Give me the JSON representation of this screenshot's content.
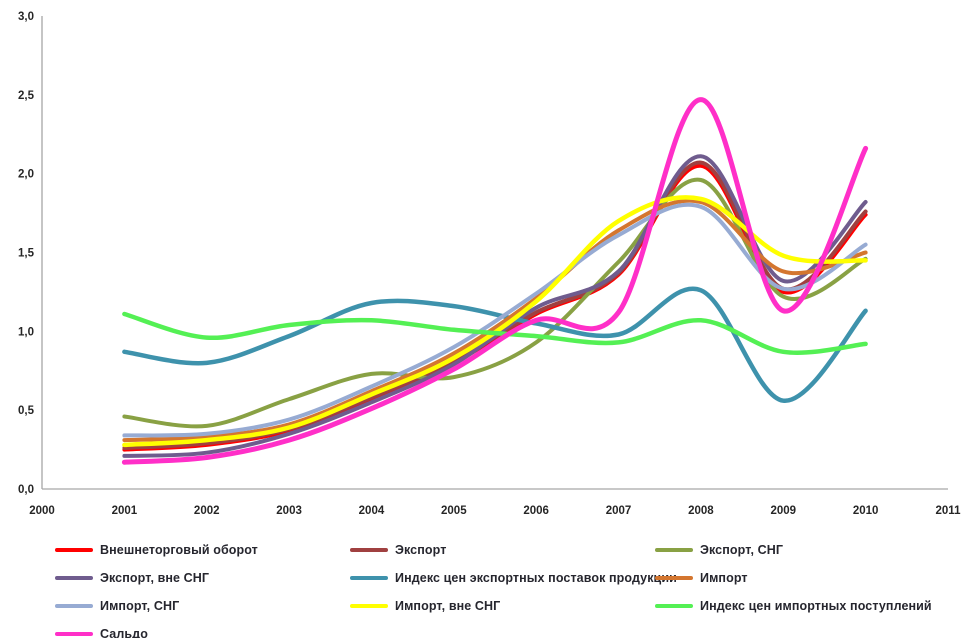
{
  "chart_data": {
    "type": "line",
    "title": "",
    "xlabel": "",
    "ylabel": "",
    "xlim": [
      2000,
      2011
    ],
    "ylim": [
      0.0,
      3.0
    ],
    "grid": false,
    "smooth": true,
    "legend_position": "bottom",
    "axis_color": "#A6A6A6",
    "tick_text_color": "#262626",
    "x_axis_ticks": [
      "2000",
      "2001",
      "2002",
      "2003",
      "2004",
      "2005",
      "2006",
      "2007",
      "2008",
      "2009",
      "2010",
      "2011"
    ],
    "y_axis_ticks": [
      "0,0",
      "0,5",
      "1,0",
      "1,5",
      "2,0",
      "2,5",
      "3,0"
    ],
    "y_tick_step": 0.5,
    "x": [
      2001,
      2002,
      2003,
      2004,
      2005,
      2006,
      2007,
      2008,
      2009,
      2010
    ],
    "series": [
      {
        "name": "Внешнеторговый оборот",
        "slug": "foreign-trade-turnover",
        "color": "#FF0000",
        "width": 4,
        "values": [
          0.25,
          0.28,
          0.37,
          0.57,
          0.8,
          1.11,
          1.36,
          2.05,
          1.25,
          1.74
        ]
      },
      {
        "name": "Экспорт",
        "slug": "export",
        "color": "#A04040",
        "width": 4,
        "values": [
          0.26,
          0.29,
          0.38,
          0.58,
          0.81,
          1.12,
          1.37,
          2.07,
          1.27,
          1.76
        ]
      },
      {
        "name": "Экспорт, СНГ",
        "slug": "export-cis",
        "color": "#89A144",
        "width": 4,
        "values": [
          0.46,
          0.4,
          0.57,
          0.73,
          0.71,
          0.93,
          1.44,
          1.96,
          1.22,
          1.46
        ]
      },
      {
        "name": "Экспорт, вне СНГ",
        "slug": "export-non-cis",
        "color": "#6F5C8E",
        "width": 4,
        "values": [
          0.21,
          0.23,
          0.35,
          0.55,
          0.79,
          1.15,
          1.38,
          2.11,
          1.32,
          1.82
        ]
      },
      {
        "name": "Индекс цен экспортных  поставок  продукции",
        "slug": "export-price-index",
        "color": "#3E92AC",
        "width": 4.5,
        "values": [
          0.87,
          0.8,
          0.97,
          1.18,
          1.16,
          1.05,
          0.98,
          1.26,
          0.56,
          1.13
        ]
      },
      {
        "name": "Импорт",
        "slug": "import",
        "color": "#D4762F",
        "width": 4,
        "values": [
          0.31,
          0.33,
          0.41,
          0.62,
          0.86,
          1.21,
          1.64,
          1.82,
          1.38,
          1.5
        ]
      },
      {
        "name": "Импорт, СНГ",
        "slug": "import-cis",
        "color": "#97ABD3",
        "width": 4,
        "values": [
          0.34,
          0.35,
          0.44,
          0.65,
          0.9,
          1.24,
          1.61,
          1.79,
          1.27,
          1.55
        ]
      },
      {
        "name": "Импорт, вне СНГ",
        "slug": "import-non-cis",
        "color": "#FFFF00",
        "width": 4.5,
        "values": [
          0.28,
          0.31,
          0.39,
          0.6,
          0.83,
          1.19,
          1.7,
          1.84,
          1.48,
          1.45
        ]
      },
      {
        "name": "Индекс цен импортных  поступлений",
        "slug": "import-price-index",
        "color": "#54F054",
        "width": 4.5,
        "values": [
          1.11,
          0.96,
          1.04,
          1.07,
          1.01,
          0.97,
          0.93,
          1.07,
          0.87,
          0.92
        ]
      },
      {
        "name": "Сальдо",
        "slug": "balance",
        "color": "#FF2FC8",
        "width": 5,
        "values": [
          0.17,
          0.2,
          0.31,
          0.51,
          0.76,
          1.07,
          1.12,
          2.47,
          1.13,
          2.16
        ]
      }
    ]
  }
}
